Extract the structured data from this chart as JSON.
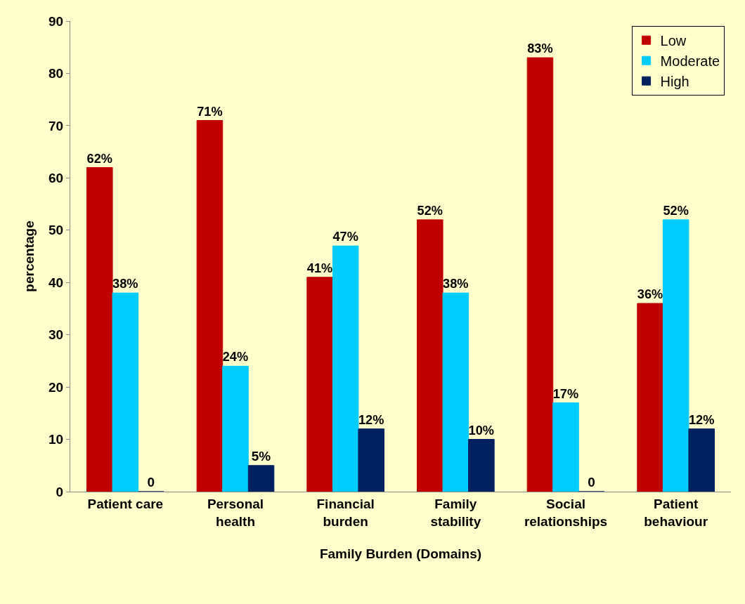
{
  "chart_data": {
    "type": "bar",
    "xlabel": "Family Burden (Domains)",
    "ylabel": "percentage",
    "categories": [
      "Patient care",
      "Personal\nhealth",
      "Financial\nburden",
      "Family\nstability",
      "Social\nrelationships",
      "Patient\nbehaviour"
    ],
    "series": [
      {
        "name": "Low",
        "color": "#c00000",
        "values": [
          62,
          71,
          41,
          52,
          83,
          36
        ],
        "value_labels": [
          "62%",
          "71%",
          "41%",
          "52%",
          "83%",
          "36%"
        ]
      },
      {
        "name": "Moderate",
        "color": "#00ccff",
        "values": [
          38,
          24,
          47,
          38,
          17,
          52
        ],
        "value_labels": [
          "38%",
          "24%",
          "47%",
          "38%",
          "17%",
          "52%"
        ]
      },
      {
        "name": "High",
        "color": "#002060",
        "values": [
          0,
          5,
          12,
          10,
          0,
          12
        ],
        "value_labels": [
          "0",
          "5%",
          "12%",
          "10%",
          "0",
          "12%"
        ]
      }
    ],
    "ylim": [
      0,
      90
    ],
    "yticks": [
      0,
      10,
      20,
      30,
      40,
      50,
      60,
      70,
      80,
      90
    ],
    "grid": false,
    "legend": "top right"
  }
}
